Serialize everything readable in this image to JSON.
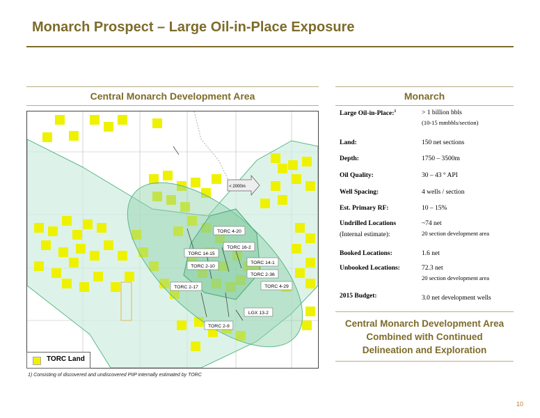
{
  "page": {
    "title": "Monarch Prospect – Large Oil-in-Place Exposure",
    "page_number": "10",
    "footnote": "1) Consisting of discovered and undiscovered PIIP internally estimated by TORC"
  },
  "map_section": {
    "heading": "Central Monarch Development Area",
    "legend_label": "TORC Land",
    "arrow_label": "< 2000m",
    "well_labels": [
      "TORC 4-20",
      "TORC 16-2",
      "TORC 14-15",
      "TORC 2-10",
      "TORC 14-1",
      "TORC 2-36",
      "TORC 2-17",
      "TORC 4-29",
      "LGX 13-2",
      "TORC 2-9"
    ],
    "colors": {
      "land": "#eef200",
      "zone": "#8fd1a8",
      "accent": "#7d6b2a"
    }
  },
  "summary": {
    "heading": "Monarch",
    "rows": [
      {
        "label": "Large Oil-in-Place:",
        "sup": "1",
        "value": "> 1 billion bbls",
        "sub": "(10-15 mmbbls/section)"
      },
      {
        "label": "Land:",
        "value": "150 net sections"
      },
      {
        "label": "Depth:",
        "value": "1750 – 3500m"
      },
      {
        "label": "Oil Quality:",
        "value": "30 – 43 ° API"
      },
      {
        "label": "Well Spacing:",
        "value": "4 wells / section"
      },
      {
        "label": "Est. Primary RF:",
        "value": "10 – 15%"
      },
      {
        "label": "Undrilled Locations",
        "label2": "(Internal estimate):",
        "value": "~74 net",
        "sub": "20 section development area"
      },
      {
        "label": "Booked Locations:",
        "value": "1.6 net"
      },
      {
        "label": "Unbooked Locations:",
        "value": "72.3 net",
        "sub": "20 section development area"
      },
      {
        "label": "2015 Budget:",
        "value": "3.0 net development wells"
      }
    ],
    "callout": [
      "Central Monarch Development Area",
      "Combined with Continued",
      "Delineation and Exploration"
    ]
  }
}
